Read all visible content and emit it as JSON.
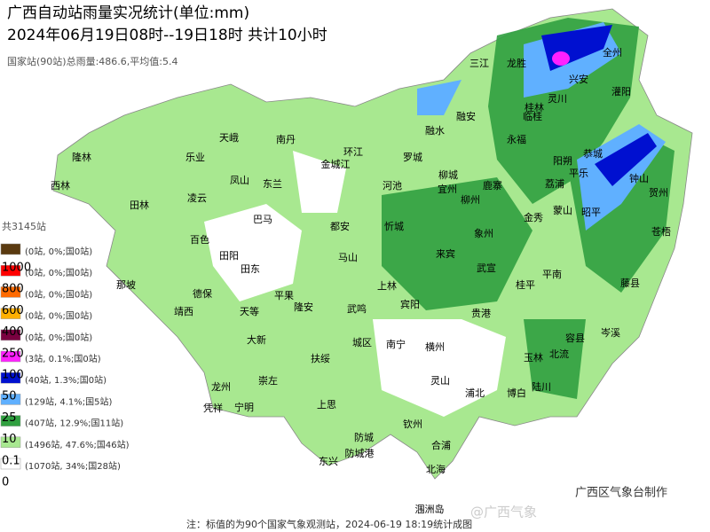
{
  "header": {
    "title": "广西自动站雨量实况统计(单位:mm)",
    "subtitle": "2024年06月19日08时--19日18时 共计10小时",
    "stats": "国家站(90站)总雨量:486.6,平均值:5.4"
  },
  "legend": {
    "title": "共3145站",
    "thresholds": [
      1000,
      800,
      600,
      400,
      250,
      100,
      50,
      25,
      10,
      0.1,
      0
    ],
    "bins": [
      {
        "color": "#5a3a10",
        "stats": "(0站, 0%;国0站)"
      },
      {
        "color": "#ff0000",
        "stats": "(0站, 0%;国0站)"
      },
      {
        "color": "#ff6a00",
        "stats": "(0站, 0%;国0站)"
      },
      {
        "color": "#ffb000",
        "stats": "(0站, 0%;国0站)"
      },
      {
        "color": "#7a0040",
        "stats": "(0站, 0%;国0站)"
      },
      {
        "color": "#ff20ff",
        "stats": "(3站, 0.1%;国0站)"
      },
      {
        "color": "#0010d0",
        "stats": "(40站, 1.3%;国0站)"
      },
      {
        "color": "#60b0ff",
        "stats": "(129站, 4.1%;国5站)"
      },
      {
        "color": "#30a040",
        "stats": "(407站, 12.9%;国11站)"
      },
      {
        "color": "#a8e890",
        "stats": "(1496站, 47.6%;国46站)"
      },
      {
        "color": "#ffffff",
        "stats": "(1070站, 34%;国28站)"
      }
    ]
  },
  "places": [
    "隆林",
    "西林",
    "田林",
    "乐业",
    "凌云",
    "凤山",
    "天峨",
    "南丹",
    "东兰",
    "环江",
    "金城江",
    "罗城",
    "融水",
    "融安",
    "三江",
    "龙胜",
    "全州",
    "兴安",
    "灌阳",
    "灵川",
    "桂林",
    "临桂",
    "永福",
    "阳朔",
    "恭城",
    "平乐",
    "钟山",
    "贺州",
    "昭平",
    "荔浦",
    "蒙山",
    "金秀",
    "苍梧",
    "柳城",
    "鹿寨",
    "柳州",
    "河池",
    "宜州",
    "忻城",
    "都安",
    "象州",
    "来宾",
    "武宣",
    "马山",
    "上林",
    "宾阳",
    "贵港",
    "桂平",
    "平南",
    "藤县",
    "岑溪",
    "容县",
    "北流",
    "玉林",
    "陆川",
    "博白",
    "巴马",
    "百色",
    "田阳",
    "田东",
    "那坡",
    "德保",
    "靖西",
    "平果",
    "隆安",
    "武鸣",
    "天等",
    "大新",
    "崇左",
    "扶绥",
    "龙州",
    "宁明",
    "凭祥",
    "上思",
    "南宁",
    "城区",
    "横州",
    "灵山",
    "浦北",
    "钦州",
    "防城",
    "防城港",
    "东兴",
    "合浦",
    "北海",
    "涠洲岛"
  ],
  "footer": {
    "note": "注：标值的为90个国家气象观测站，2024-06-19 18:19统计成图",
    "maker": "广西区气象台制作",
    "watermark": "@广西气象"
  }
}
